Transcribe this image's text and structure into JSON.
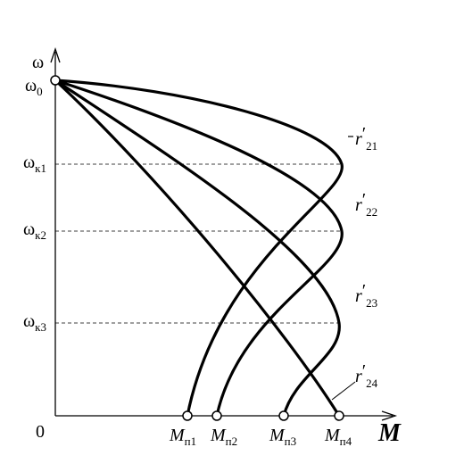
{
  "y_axis": {
    "label": "ω",
    "ticks": [
      {
        "base": "ω",
        "sub": "0"
      },
      {
        "base": "ω",
        "sub": "к1"
      },
      {
        "base": "ω",
        "sub": "к2"
      },
      {
        "base": "ω",
        "sub": "к3"
      }
    ]
  },
  "x_axis": {
    "label": "M",
    "origin": "0",
    "ticks": [
      {
        "base": "M",
        "sub": "п1"
      },
      {
        "base": "M",
        "sub": "п2"
      },
      {
        "base": "M",
        "sub": "п3"
      },
      {
        "base": "M",
        "sub": "п4"
      }
    ]
  },
  "curves": [
    {
      "base": "r",
      "prime": "′",
      "sub": "21"
    },
    {
      "base": "r",
      "prime": "′",
      "sub": "22"
    },
    {
      "base": "r",
      "prime": "′",
      "sub": "23"
    },
    {
      "base": "r",
      "prime": "′",
      "sub": "24"
    }
  ]
}
